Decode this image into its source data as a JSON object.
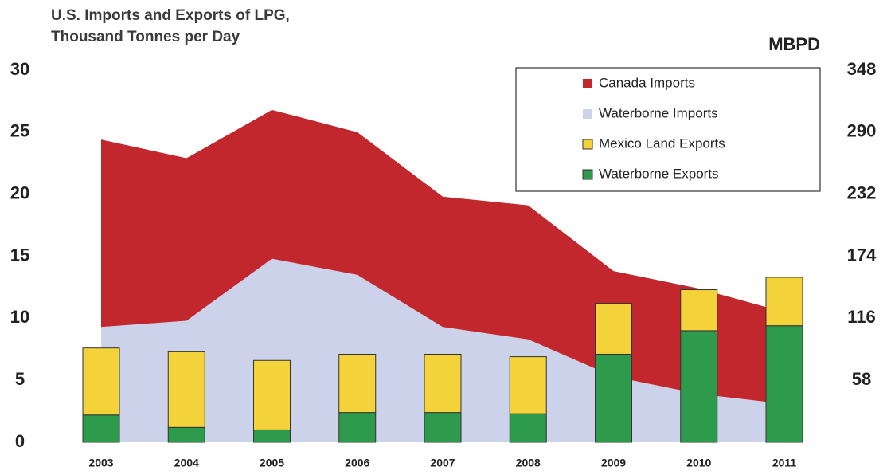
{
  "chart_data": {
    "type": "combo",
    "title": [
      "U.S. Imports and Exports of LPG,",
      "Thousand Tonnes per Day"
    ],
    "y2label": "MBPD",
    "categories": [
      "2003",
      "2004",
      "2005",
      "2006",
      "2007",
      "2008",
      "2009",
      "2010",
      "2011"
    ],
    "series": [
      {
        "name": "Canada Imports",
        "type": "area",
        "color": "#c1272d",
        "values": [
          15.1,
          13.1,
          12.0,
          11.5,
          10.5,
          10.8,
          8.5,
          8.5,
          7.4
        ]
      },
      {
        "name": "Waterborne Imports",
        "type": "area",
        "color": "#ccd2ea",
        "values": [
          9.3,
          9.8,
          14.8,
          13.5,
          9.3,
          8.3,
          5.3,
          3.9,
          3.1
        ]
      },
      {
        "name": "Mexico Land Exports",
        "type": "bar",
        "color": "#f4d23a",
        "values": [
          5.4,
          6.1,
          5.6,
          4.7,
          4.7,
          4.6,
          4.1,
          3.3,
          3.9
        ]
      },
      {
        "name": "Waterborne Exports",
        "type": "bar",
        "color": "#2e9a4b",
        "values": [
          2.2,
          1.2,
          1.0,
          2.4,
          2.4,
          2.3,
          7.1,
          9.0,
          9.4
        ]
      }
    ],
    "ylim": [
      0,
      30
    ],
    "yticks": [
      0,
      5,
      10,
      15,
      20,
      25,
      30
    ],
    "y2lim": [
      0,
      348
    ],
    "y2ticks": [
      58,
      116,
      174,
      232,
      290,
      348
    ]
  }
}
